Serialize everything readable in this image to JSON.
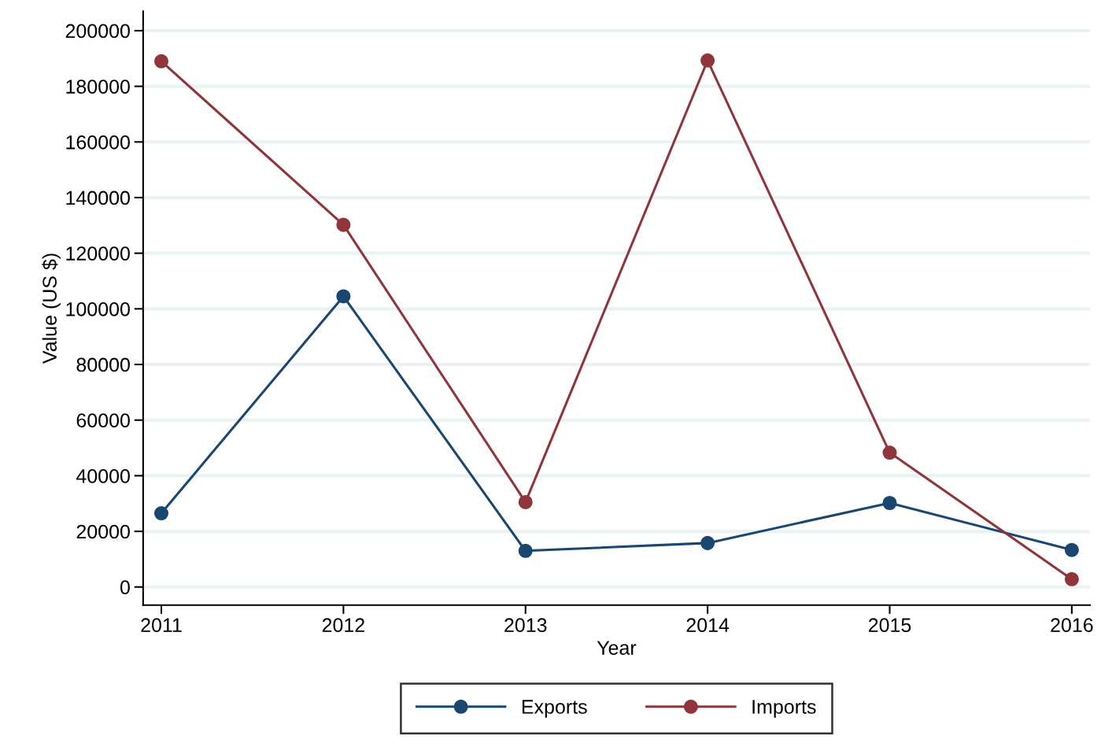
{
  "chart_data": {
    "type": "line",
    "xlabel": "Year",
    "ylabel": "Value (US $)",
    "x": [
      2011,
      2012,
      2013,
      2014,
      2015,
      2016
    ],
    "series": [
      {
        "name": "Exports",
        "color": "#1a476f",
        "values": [
          26500,
          104500,
          13000,
          15800,
          30200,
          13300
        ]
      },
      {
        "name": "Imports",
        "color": "#90353b",
        "values": [
          189000,
          130200,
          30500,
          189300,
          48300,
          2800
        ]
      }
    ],
    "xlim": [
      2010.9,
      2016.1
    ],
    "xticks": [
      2011,
      2012,
      2013,
      2014,
      2015,
      2016
    ],
    "ylim": [
      -6500,
      207000
    ],
    "yticks": [
      0,
      20000,
      40000,
      60000,
      80000,
      100000,
      120000,
      140000,
      160000,
      180000,
      200000
    ],
    "grid": "y",
    "legend": "bottom",
    "marker": "circle",
    "line_style": "solid"
  }
}
